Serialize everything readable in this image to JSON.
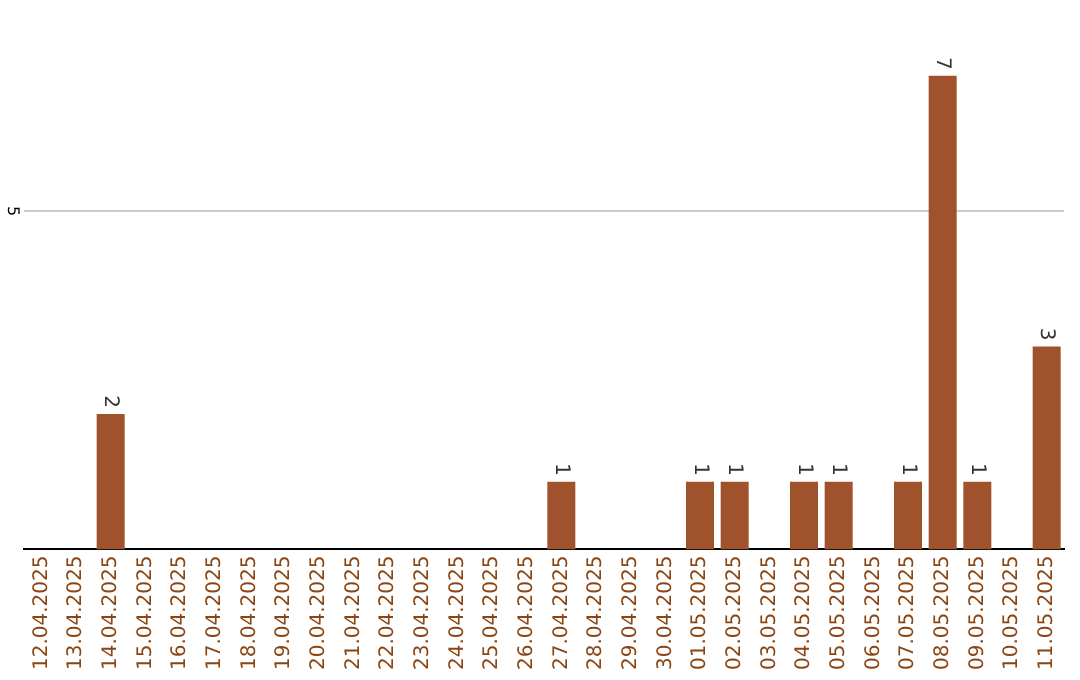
{
  "chart_data": {
    "type": "bar",
    "categories": [
      "12.04.2025",
      "13.04.2025",
      "14.04.2025",
      "15.04.2025",
      "16.04.2025",
      "17.04.2025",
      "18.04.2025",
      "19.04.2025",
      "20.04.2025",
      "21.04.2025",
      "22.04.2025",
      "23.04.2025",
      "24.04.2025",
      "25.04.2025",
      "26.04.2025",
      "27.04.2025",
      "28.04.2025",
      "29.04.2025",
      "30.04.2025",
      "01.05.2025",
      "02.05.2025",
      "03.05.2025",
      "04.05.2025",
      "05.05.2025",
      "06.05.2025",
      "07.05.2025",
      "08.05.2025",
      "09.05.2025",
      "10.05.2025",
      "11.05.2025"
    ],
    "values": [
      0,
      0,
      2,
      0,
      0,
      0,
      0,
      0,
      0,
      0,
      0,
      0,
      0,
      0,
      0,
      1,
      0,
      0,
      0,
      1,
      1,
      0,
      1,
      1,
      0,
      1,
      7,
      1,
      0,
      3
    ],
    "value_labels": [
      null,
      null,
      "2",
      null,
      null,
      null,
      null,
      null,
      null,
      null,
      null,
      null,
      null,
      null,
      null,
      "1",
      null,
      null,
      null,
      "1",
      "1",
      null,
      "1",
      "1",
      null,
      "1",
      "7",
      "1",
      null,
      "3"
    ],
    "color": "#a0522d",
    "ref_lines": [
      {
        "axis": "y",
        "value": 5,
        "label": "5",
        "color": "#cccccc"
      }
    ],
    "legend": false
  }
}
